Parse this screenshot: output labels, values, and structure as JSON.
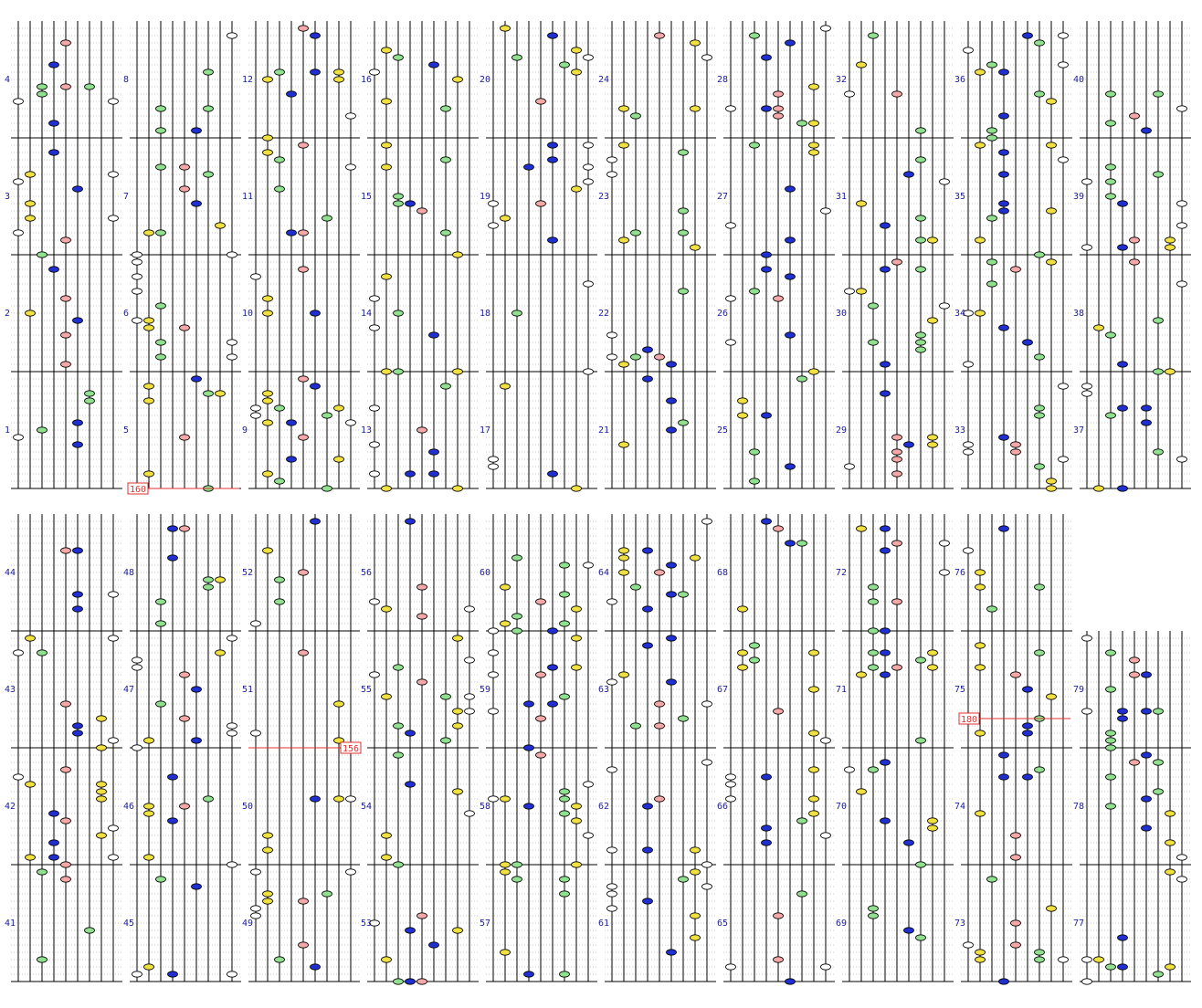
{
  "measures": [
    1,
    2,
    3,
    4,
    5,
    6,
    7,
    8,
    9,
    10,
    11,
    12,
    13,
    14,
    15,
    16,
    17,
    18,
    19,
    20,
    21,
    22,
    23,
    24,
    25,
    26,
    27,
    28,
    29,
    30,
    31,
    32,
    33,
    34,
    35,
    36,
    37,
    38,
    39,
    40,
    41,
    42,
    43,
    44,
    45,
    46,
    47,
    48,
    49,
    50,
    51,
    52,
    53,
    54,
    55,
    56,
    57,
    58,
    59,
    60,
    61,
    62,
    63,
    64,
    65,
    66,
    67,
    68,
    69,
    70,
    71,
    72,
    73,
    74,
    75,
    76,
    77,
    78,
    79
  ],
  "bpm_markers": [
    160,
    156,
    180
  ]
}
